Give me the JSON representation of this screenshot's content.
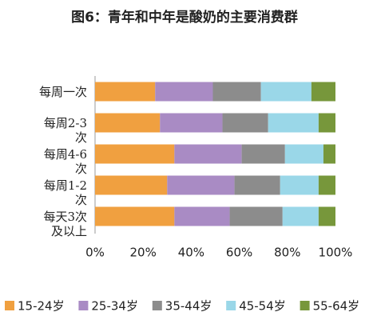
{
  "chart_data": {
    "type": "stacked-barh",
    "title": "图6：青年和中年是酸奶的主要消费群",
    "categories": [
      "每周一次",
      "每周2-3次",
      "每周4-6次",
      "每周1-2次",
      "每天3次及以上"
    ],
    "series": [
      {
        "name": "15-24岁",
        "color": "#f0a040",
        "values": [
          25,
          27,
          33,
          30,
          33
        ]
      },
      {
        "name": "25-34岁",
        "color": "#a98bc4",
        "values": [
          24,
          26,
          28,
          28,
          23
        ]
      },
      {
        "name": "35-44岁",
        "color": "#8c8c8c",
        "values": [
          20,
          19,
          18,
          19,
          22
        ]
      },
      {
        "name": "45-54岁",
        "color": "#9ad7e8",
        "values": [
          21,
          21,
          16,
          16,
          15
        ]
      },
      {
        "name": "55-64岁",
        "color": "#77973b",
        "values": [
          10,
          7,
          5,
          7,
          7
        ]
      }
    ],
    "xlim": [
      0,
      100
    ],
    "xticks": [
      {
        "value": 0,
        "label": "0%"
      },
      {
        "value": 20,
        "label": "20%"
      },
      {
        "value": 40,
        "label": "40%"
      },
      {
        "value": 60,
        "label": "60%"
      },
      {
        "value": 80,
        "label": "80%"
      },
      {
        "value": 100,
        "label": "100%"
      }
    ],
    "legend": "bottom"
  }
}
